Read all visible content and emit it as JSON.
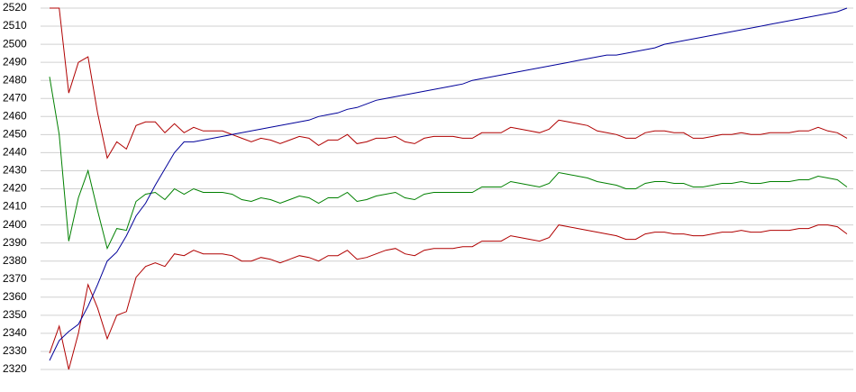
{
  "chart_data": {
    "type": "line",
    "categories": [
      null,
      null,
      null,
      null,
      null,
      null,
      null,
      null,
      null,
      null,
      null,
      null,
      null,
      null,
      null,
      null,
      null,
      null,
      null,
      null,
      null,
      null,
      null,
      null,
      null,
      null,
      null,
      null,
      null,
      null,
      null,
      null,
      null,
      null,
      null,
      null,
      null,
      null,
      null,
      null,
      null,
      null,
      null,
      null,
      null,
      null,
      null,
      null,
      null,
      null,
      null,
      null,
      null,
      null,
      null,
      null,
      null,
      null,
      null,
      null,
      null,
      null,
      null,
      null,
      null,
      null,
      null,
      null,
      null,
      null,
      null,
      null,
      null,
      null,
      null,
      null,
      null,
      null,
      null,
      null,
      null,
      null,
      null,
      null
    ],
    "series": [
      {
        "color": "#b00000",
        "values": [
          2520,
          2520,
          2473,
          2490,
          2493,
          2462,
          2437,
          2446,
          2442,
          2455,
          2457,
          2457,
          2451,
          2456,
          2451,
          2454,
          2452,
          2452,
          2452,
          2450,
          2448,
          2446,
          2448,
          2447,
          2445,
          2447,
          2449,
          2448,
          2444,
          2447,
          2447,
          2450,
          2445,
          2446,
          2448,
          2448,
          2449,
          2446,
          2445,
          2448,
          2449,
          2449,
          2449,
          2448,
          2448,
          2451,
          2451,
          2451,
          2454,
          2453,
          2452,
          2451,
          2453,
          2458,
          2457,
          2456,
          2455,
          2452,
          2451,
          2450,
          2448,
          2448,
          2451,
          2452,
          2452,
          2451,
          2451,
          2448,
          2448,
          2449,
          2450,
          2450,
          2451,
          2450,
          2450,
          2451,
          2451,
          2451,
          2452,
          2452,
          2454,
          2452,
          2451,
          2448
        ]
      },
      {
        "color": "#008000",
        "values": [
          2482,
          2450,
          2391,
          2415,
          2430,
          2408,
          2387,
          2398,
          2397,
          2413,
          2417,
          2418,
          2414,
          2420,
          2417,
          2420,
          2418,
          2418,
          2418,
          2417,
          2414,
          2413,
          2415,
          2414,
          2412,
          2414,
          2416,
          2415,
          2412,
          2415,
          2415,
          2418,
          2413,
          2414,
          2416,
          2417,
          2418,
          2415,
          2414,
          2417,
          2418,
          2418,
          2418,
          2418,
          2418,
          2421,
          2421,
          2421,
          2424,
          2423,
          2422,
          2421,
          2423,
          2429,
          2428,
          2427,
          2426,
          2424,
          2423,
          2422,
          2420,
          2420,
          2423,
          2424,
          2424,
          2423,
          2423,
          2421,
          2421,
          2422,
          2423,
          2423,
          2424,
          2423,
          2423,
          2424,
          2424,
          2424,
          2425,
          2425,
          2427,
          2426,
          2425,
          2421
        ]
      },
      {
        "color": "#b00000",
        "values": [
          2329,
          2344,
          2320,
          2340,
          2367,
          2354,
          2337,
          2350,
          2352,
          2371,
          2377,
          2379,
          2377,
          2384,
          2383,
          2386,
          2384,
          2384,
          2384,
          2383,
          2380,
          2380,
          2382,
          2381,
          2379,
          2381,
          2383,
          2382,
          2380,
          2383,
          2383,
          2386,
          2381,
          2382,
          2384,
          2386,
          2387,
          2384,
          2383,
          2386,
          2387,
          2387,
          2387,
          2388,
          2388,
          2391,
          2391,
          2391,
          2394,
          2393,
          2392,
          2391,
          2393,
          2400,
          2399,
          2398,
          2397,
          2396,
          2395,
          2394,
          2392,
          2392,
          2395,
          2396,
          2396,
          2395,
          2395,
          2394,
          2394,
          2395,
          2396,
          2396,
          2397,
          2396,
          2396,
          2397,
          2397,
          2397,
          2398,
          2398,
          2400,
          2400,
          2399,
          2395
        ]
      },
      {
        "color": "#000099",
        "values": [
          2325,
          2336,
          2341,
          2345,
          2355,
          2367,
          2380,
          2385,
          2394,
          2405,
          2412,
          2422,
          2431,
          2440,
          2446,
          2446,
          2447,
          2448,
          2449,
          2450,
          2451,
          2452,
          2453,
          2454,
          2455,
          2456,
          2457,
          2458,
          2460,
          2461,
          2462,
          2464,
          2465,
          2467,
          2469,
          2470,
          2471,
          2472,
          2473,
          2474,
          2475,
          2476,
          2477,
          2478,
          2480,
          2481,
          2482,
          2483,
          2484,
          2485,
          2486,
          2487,
          2488,
          2489,
          2490,
          2491,
          2492,
          2493,
          2494,
          2494,
          2495,
          2496,
          2497,
          2498,
          2500,
          2501,
          2502,
          2503,
          2504,
          2505,
          2506,
          2507,
          2508,
          2509,
          2510,
          2511,
          2512,
          2513,
          2514,
          2515,
          2516,
          2517,
          2518,
          2520
        ]
      }
    ],
    "ylim": [
      2320,
      2520
    ],
    "yticks": [
      2320,
      2330,
      2340,
      2350,
      2360,
      2370,
      2380,
      2390,
      2400,
      2410,
      2420,
      2430,
      2440,
      2450,
      2460,
      2470,
      2480,
      2490,
      2500,
      2510,
      2520
    ],
    "grid": true
  }
}
